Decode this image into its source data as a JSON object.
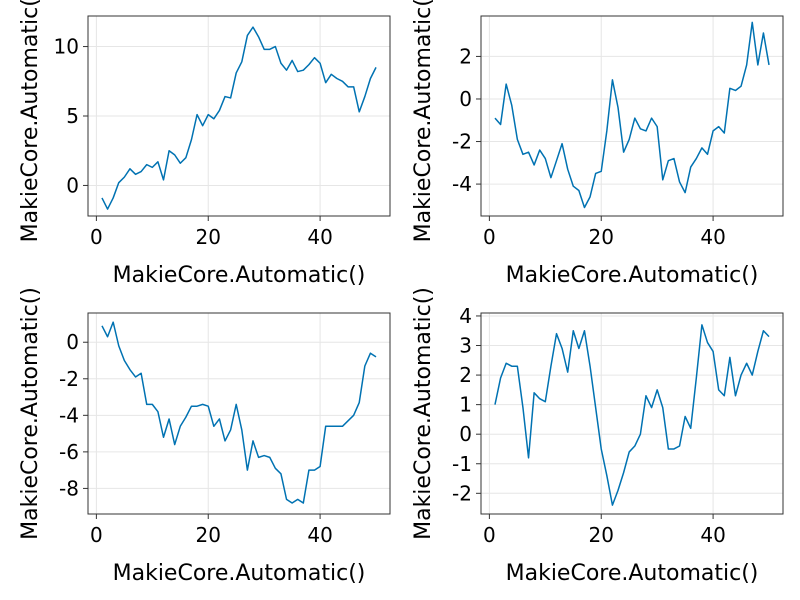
{
  "colors": {
    "series": "#0072b2",
    "grid": "#e6e6e6",
    "frame": "#333333"
  },
  "chart_data": [
    {
      "type": "line",
      "xlabel": "MakieCore.Automatic()",
      "ylabel": "MakieCore.Automatic()",
      "grid": true,
      "xlim": [
        -1.5,
        52.5
      ],
      "ylim": [
        -2.2,
        12.2
      ],
      "xticks": [
        0,
        20,
        40
      ],
      "xtick_labels": [
        "0",
        "20",
        "40"
      ],
      "yticks": [
        0,
        5,
        10
      ],
      "ytick_labels": [
        "0",
        "5",
        "10"
      ],
      "series": [
        {
          "x": [
            1,
            2,
            3,
            4,
            5,
            6,
            7,
            8,
            9,
            10,
            11,
            12,
            13,
            14,
            15,
            16,
            17,
            18,
            19,
            20,
            21,
            22,
            23,
            24,
            25,
            26,
            27,
            28,
            29,
            30,
            31,
            32,
            33,
            34,
            35,
            36,
            37,
            38,
            39,
            40,
            41,
            42,
            43,
            44,
            45,
            46,
            47,
            48,
            49,
            50
          ],
          "y": [
            -0.9,
            -1.7,
            -0.9,
            0.2,
            0.6,
            1.2,
            0.8,
            1.0,
            1.5,
            1.3,
            1.7,
            0.4,
            2.5,
            2.2,
            1.6,
            2.0,
            3.3,
            5.1,
            4.3,
            5.1,
            4.8,
            5.4,
            6.4,
            6.3,
            8.1,
            8.9,
            10.8,
            11.4,
            10.7,
            9.8,
            9.8,
            10.0,
            8.8,
            8.3,
            9.0,
            8.2,
            8.3,
            8.7,
            9.2,
            8.8,
            7.4,
            8.0,
            7.7,
            7.5,
            7.1,
            7.1,
            5.3,
            6.4,
            7.7,
            8.5
          ]
        }
      ]
    },
    {
      "type": "line",
      "xlabel": "MakieCore.Automatic()",
      "ylabel": "MakieCore.Automatic()",
      "grid": true,
      "xlim": [
        -1.5,
        52.5
      ],
      "ylim": [
        -5.5,
        3.9
      ],
      "xticks": [
        0,
        20,
        40
      ],
      "xtick_labels": [
        "0",
        "20",
        "40"
      ],
      "yticks": [
        -4,
        -2,
        0,
        2
      ],
      "ytick_labels": [
        "-4",
        "-2",
        "0",
        "2"
      ],
      "series": [
        {
          "x": [
            1,
            2,
            3,
            4,
            5,
            6,
            7,
            8,
            9,
            10,
            11,
            12,
            13,
            14,
            15,
            16,
            17,
            18,
            19,
            20,
            21,
            22,
            23,
            24,
            25,
            26,
            27,
            28,
            29,
            30,
            31,
            32,
            33,
            34,
            35,
            36,
            37,
            38,
            39,
            40,
            41,
            42,
            43,
            44,
            45,
            46,
            47,
            48,
            49,
            50
          ],
          "y": [
            -0.9,
            -1.2,
            0.7,
            -0.3,
            -1.9,
            -2.6,
            -2.5,
            -3.1,
            -2.4,
            -2.8,
            -3.7,
            -2.9,
            -2.1,
            -3.3,
            -4.1,
            -4.3,
            -5.1,
            -4.6,
            -3.5,
            -3.4,
            -1.5,
            0.9,
            -0.4,
            -2.5,
            -1.9,
            -0.9,
            -1.4,
            -1.5,
            -0.9,
            -1.3,
            -3.8,
            -2.9,
            -2.8,
            -3.9,
            -4.4,
            -3.2,
            -2.8,
            -2.3,
            -2.6,
            -1.5,
            -1.3,
            -1.6,
            0.5,
            0.4,
            0.6,
            1.6,
            3.6,
            1.6,
            3.1,
            1.6
          ]
        }
      ]
    },
    {
      "type": "line",
      "xlabel": "MakieCore.Automatic()",
      "ylabel": "MakieCore.Automatic()",
      "grid": true,
      "xlim": [
        -1.5,
        52.5
      ],
      "ylim": [
        -9.4,
        1.6
      ],
      "xticks": [
        0,
        20,
        40
      ],
      "xtick_labels": [
        "0",
        "20",
        "40"
      ],
      "yticks": [
        -8,
        -6,
        -4,
        -2,
        0
      ],
      "ytick_labels": [
        "-8",
        "-6",
        "-4",
        "-2",
        "0"
      ],
      "series": [
        {
          "x": [
            1,
            2,
            3,
            4,
            5,
            6,
            7,
            8,
            9,
            10,
            11,
            12,
            13,
            14,
            15,
            16,
            17,
            18,
            19,
            20,
            21,
            22,
            23,
            24,
            25,
            26,
            27,
            28,
            29,
            30,
            31,
            32,
            33,
            34,
            35,
            36,
            37,
            38,
            39,
            40,
            41,
            42,
            43,
            44,
            45,
            46,
            47,
            48,
            49,
            50
          ],
          "y": [
            0.9,
            0.3,
            1.1,
            -0.2,
            -1.0,
            -1.5,
            -1.9,
            -1.7,
            -3.4,
            -3.4,
            -3.8,
            -5.2,
            -4.2,
            -5.6,
            -4.6,
            -4.1,
            -3.5,
            -3.5,
            -3.4,
            -3.5,
            -4.6,
            -4.2,
            -5.4,
            -4.8,
            -3.4,
            -4.8,
            -7.0,
            -5.4,
            -6.3,
            -6.2,
            -6.3,
            -6.9,
            -7.2,
            -8.6,
            -8.8,
            -8.6,
            -8.8,
            -7.0,
            -7.0,
            -6.8,
            -4.6,
            -4.6,
            -4.6,
            -4.6,
            -4.3,
            -4.0,
            -3.3,
            -1.3,
            -0.6,
            -0.8
          ]
        }
      ]
    },
    {
      "type": "line",
      "xlabel": "MakieCore.Automatic()",
      "ylabel": "MakieCore.Automatic()",
      "grid": true,
      "xlim": [
        -1.5,
        52.5
      ],
      "ylim": [
        -2.7,
        4.1
      ],
      "xticks": [
        0,
        20,
        40
      ],
      "xtick_labels": [
        "0",
        "20",
        "40"
      ],
      "yticks": [
        -2,
        -1,
        0,
        1,
        2,
        3,
        4
      ],
      "ytick_labels": [
        "-2",
        "-1",
        "0",
        "1",
        "2",
        "3",
        "4"
      ],
      "series": [
        {
          "x": [
            1,
            2,
            3,
            4,
            5,
            6,
            7,
            8,
            9,
            10,
            11,
            12,
            13,
            14,
            15,
            16,
            17,
            18,
            19,
            20,
            21,
            22,
            23,
            24,
            25,
            26,
            27,
            28,
            29,
            30,
            31,
            32,
            33,
            34,
            35,
            36,
            37,
            38,
            39,
            40,
            41,
            42,
            43,
            44,
            45,
            46,
            47,
            48,
            49,
            50
          ],
          "y": [
            1.0,
            1.9,
            2.4,
            2.3,
            2.3,
            0.9,
            -0.8,
            1.4,
            1.2,
            1.1,
            2.3,
            3.4,
            2.9,
            2.1,
            3.5,
            2.9,
            3.5,
            2.3,
            0.9,
            -0.5,
            -1.4,
            -2.4,
            -1.9,
            -1.3,
            -0.6,
            -0.4,
            0.0,
            1.3,
            0.9,
            1.5,
            0.9,
            -0.5,
            -0.5,
            -0.4,
            0.6,
            0.2,
            1.9,
            3.7,
            3.1,
            2.8,
            1.5,
            1.3,
            2.6,
            1.3,
            2.0,
            2.4,
            2.0,
            2.8,
            3.5,
            3.3
          ]
        }
      ]
    }
  ]
}
